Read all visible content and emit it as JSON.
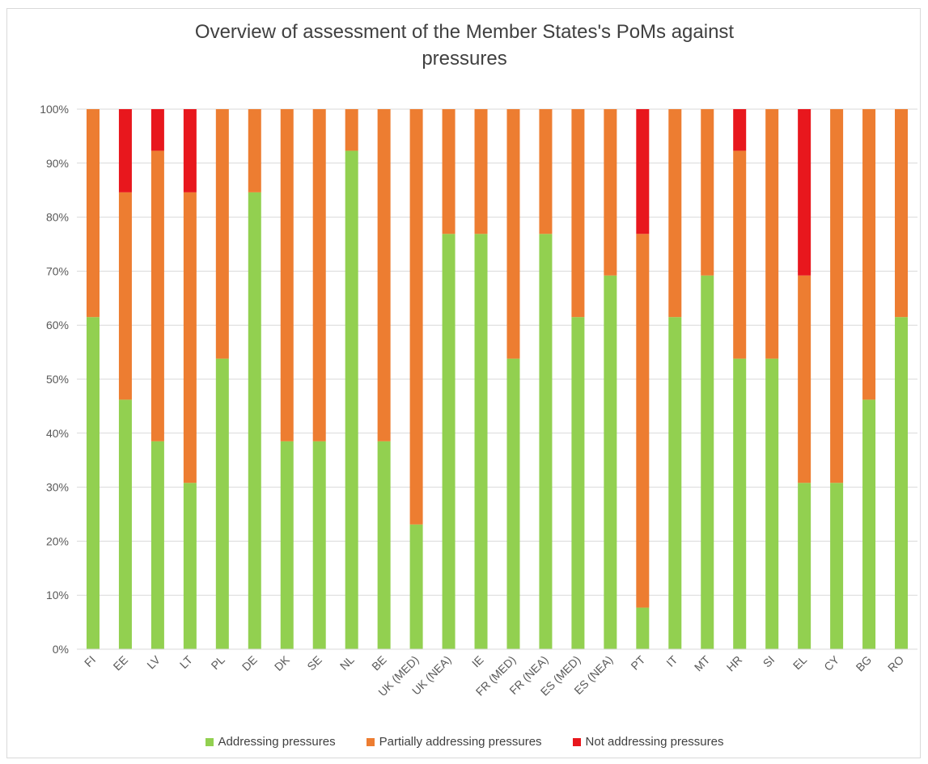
{
  "chart_data": {
    "type": "bar",
    "stacked": true,
    "title_lines": [
      "Overview of assessment of the Member States's PoMs against",
      "pressures"
    ],
    "categories": [
      "FI",
      "EE",
      "LV",
      "LT",
      "PL",
      "DE",
      "DK",
      "SE",
      "NL",
      "BE",
      "UK (MED)",
      "UK (NEA)",
      "IE",
      "FR (MED)",
      "FR (NEA)",
      "ES (MED)",
      "ES (NEA)",
      "PT",
      "IT",
      "MT",
      "HR",
      "SI",
      "EL",
      "CY",
      "BG",
      "RO"
    ],
    "series": [
      {
        "name": "Addressing pressures",
        "color": "#92d050",
        "values": [
          61.5,
          46.2,
          38.5,
          30.8,
          53.8,
          84.6,
          38.5,
          38.5,
          92.3,
          38.5,
          23.1,
          76.9,
          76.9,
          53.8,
          76.9,
          61.5,
          69.2,
          7.7,
          61.5,
          69.2,
          53.8,
          53.8,
          30.8,
          30.8,
          46.2,
          61.5
        ]
      },
      {
        "name": "Partially addressing pressures",
        "color": "#ed7d31",
        "values": [
          38.5,
          38.4,
          53.8,
          53.8,
          46.2,
          15.4,
          61.5,
          61.5,
          7.7,
          61.5,
          76.9,
          23.1,
          23.1,
          46.2,
          23.1,
          38.5,
          30.8,
          69.2,
          38.5,
          30.8,
          38.5,
          46.2,
          38.4,
          69.2,
          53.8,
          38.5
        ]
      },
      {
        "name": "Not addressing pressures",
        "color": "#e8171d",
        "values": [
          0,
          15.4,
          7.7,
          15.4,
          0,
          0,
          0,
          0,
          0,
          0,
          0,
          0,
          0,
          0,
          0,
          0,
          0,
          23.1,
          0,
          0,
          7.7,
          0,
          30.8,
          0,
          0,
          0
        ]
      }
    ],
    "ylim": [
      0,
      100
    ],
    "yticks": [
      "0%",
      "10%",
      "20%",
      "30%",
      "40%",
      "50%",
      "60%",
      "70%",
      "80%",
      "90%",
      "100%"
    ],
    "grid": true,
    "legend_position": "bottom"
  }
}
